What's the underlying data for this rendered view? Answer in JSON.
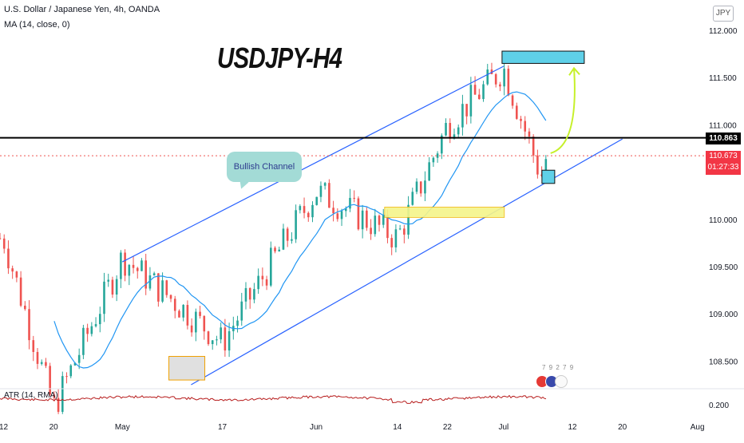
{
  "header": {
    "instrument": "U.S. Dollar / Japanese Yen, 4h, OANDA",
    "indicator": "MA (14, close, 0)",
    "currency": "JPY"
  },
  "annotations": {
    "title": "USDJPY-H4",
    "bubble": "Bullish Channel"
  },
  "price_scale": {
    "levels": [
      "112.000",
      "111.500",
      "111.000",
      "110.000",
      "109.500",
      "109.000",
      "108.500",
      "0.200"
    ],
    "horizontal_line_price": "110.863",
    "last_price": "110.673",
    "countdown": "01:27:33"
  },
  "time_axis": {
    "labels": [
      "12",
      "20",
      "May",
      "17",
      "Jun",
      "14",
      "22",
      "Jul",
      "12",
      "20",
      "Aug"
    ]
  },
  "lower_pane": {
    "label": "ATR (14, RMA)"
  },
  "events": {
    "text": "7 9 2 7 9"
  },
  "colors": {
    "up": "#26a69a",
    "down": "#ef5350",
    "ma": "#2196f3",
    "channel": "#2962ff",
    "atr": "#b71c1c",
    "support_zone": "#f5f58a",
    "target_zone": "#5fd0e8",
    "arrow": "#c6f029"
  },
  "chart_data": {
    "type": "candlestick",
    "title": "USDJPY-H4",
    "ylim": [
      108.2,
      112.2
    ],
    "xlabels": [
      "12",
      "20",
      "May",
      "17",
      "Jun",
      "14",
      "22",
      "Jul",
      "12",
      "20",
      "Aug"
    ],
    "ma_period": 14,
    "key_points": [
      {
        "date": "12 Apr",
        "price": 109.8
      },
      {
        "date": "20 Apr",
        "price": 108.0
      },
      {
        "date": "May",
        "price": 109.6
      },
      {
        "date": "17 May",
        "price": 108.7
      },
      {
        "date": "Jun",
        "price": 110.3
      },
      {
        "date": "14 Jun",
        "price": 109.8
      },
      {
        "date": "22 Jun",
        "price": 111.0
      },
      {
        "date": "Jul",
        "price": 111.6
      },
      {
        "date": "7 Jul",
        "price": 110.45
      },
      {
        "date": "8 Jul",
        "price": 110.7
      }
    ],
    "channel_upper": [
      {
        "date": "May",
        "price": 109.55
      },
      {
        "date": "Jul",
        "price": 111.62
      }
    ],
    "channel_lower": [
      {
        "date": "12 May",
        "price": 108.25
      },
      {
        "date": "20 Jul",
        "price": 110.85
      }
    ],
    "horizontal_line": 110.863,
    "last_price": 110.673,
    "support_zone": [
      110.02,
      110.13
    ],
    "target_zone": [
      111.65,
      111.78
    ],
    "atr_level": 0.2
  }
}
